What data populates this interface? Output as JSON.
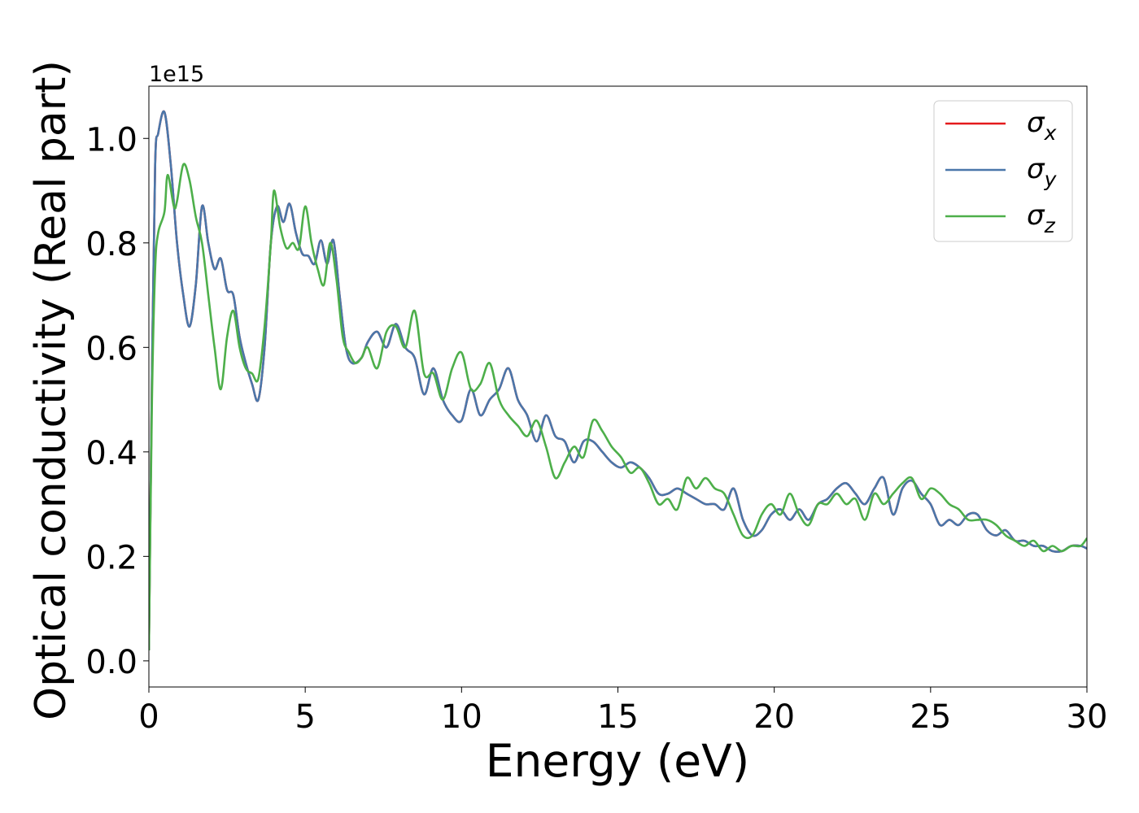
{
  "chart_data": {
    "type": "line",
    "title": "",
    "xlabel": "Energy (eV)",
    "ylabel": "Optical conductivity (Real part)",
    "y_offset_label": "1e15",
    "y_scale": 1000000000000000.0,
    "xlim": [
      0,
      30
    ],
    "ylim": [
      -0.05,
      1.1
    ],
    "xticks": [
      0,
      5,
      10,
      15,
      20,
      25,
      30
    ],
    "xtick_labels": [
      "0",
      "5",
      "10",
      "15",
      "20",
      "25",
      "30"
    ],
    "yticks": [
      0.0,
      0.2,
      0.4,
      0.6,
      0.8,
      1.0
    ],
    "ytick_labels": [
      "0.0",
      "0.2",
      "0.4",
      "0.6",
      "0.8",
      "1.0"
    ],
    "grid": false,
    "legend_position": "top-right",
    "series": [
      {
        "name": "σ_x",
        "legend_base": "σ",
        "legend_sub": "x",
        "color": "#e41a1c",
        "x": [
          0,
          0.1,
          0.2,
          0.3,
          0.5,
          0.7,
          0.9,
          1.1,
          1.3,
          1.5,
          1.7,
          1.9,
          2.1,
          2.3,
          2.5,
          2.7,
          2.9,
          3.1,
          3.3,
          3.5,
          3.7,
          3.9,
          4.1,
          4.3,
          4.5,
          4.7,
          4.9,
          5.1,
          5.3,
          5.5,
          5.7,
          5.9,
          6.1,
          6.3,
          6.5,
          6.8,
          7.0,
          7.3,
          7.6,
          7.9,
          8.2,
          8.5,
          8.8,
          9.1,
          9.4,
          9.7,
          10.0,
          10.3,
          10.6,
          10.9,
          11.2,
          11.5,
          11.8,
          12.1,
          12.4,
          12.7,
          13.0,
          13.3,
          13.6,
          13.9,
          14.2,
          14.5,
          14.8,
          15.1,
          15.4,
          15.7,
          16.0,
          16.3,
          16.6,
          16.9,
          17.2,
          17.5,
          17.8,
          18.1,
          18.4,
          18.7,
          19.0,
          19.3,
          19.6,
          19.9,
          20.2,
          20.5,
          20.8,
          21.1,
          21.4,
          21.7,
          22.0,
          22.3,
          22.6,
          22.9,
          23.2,
          23.5,
          23.8,
          24.1,
          24.4,
          24.7,
          25.0,
          25.3,
          25.6,
          25.9,
          26.2,
          26.5,
          26.8,
          27.1,
          27.4,
          27.7,
          28.0,
          28.3,
          28.6,
          28.9,
          29.2,
          29.5,
          29.8,
          30.0
        ],
        "values": [
          0.02,
          0.55,
          0.95,
          1.01,
          1.05,
          0.95,
          0.8,
          0.7,
          0.64,
          0.72,
          0.87,
          0.8,
          0.75,
          0.77,
          0.71,
          0.7,
          0.62,
          0.57,
          0.53,
          0.5,
          0.6,
          0.8,
          0.87,
          0.84,
          0.875,
          0.82,
          0.78,
          0.775,
          0.76,
          0.805,
          0.76,
          0.805,
          0.7,
          0.6,
          0.57,
          0.58,
          0.61,
          0.63,
          0.6,
          0.645,
          0.6,
          0.58,
          0.51,
          0.56,
          0.5,
          0.47,
          0.46,
          0.52,
          0.47,
          0.5,
          0.52,
          0.56,
          0.5,
          0.47,
          0.42,
          0.47,
          0.43,
          0.42,
          0.38,
          0.42,
          0.42,
          0.4,
          0.38,
          0.37,
          0.38,
          0.37,
          0.35,
          0.32,
          0.32,
          0.33,
          0.32,
          0.31,
          0.3,
          0.3,
          0.29,
          0.33,
          0.27,
          0.24,
          0.25,
          0.28,
          0.29,
          0.27,
          0.29,
          0.27,
          0.3,
          0.31,
          0.33,
          0.34,
          0.32,
          0.3,
          0.33,
          0.35,
          0.28,
          0.33,
          0.345,
          0.32,
          0.3,
          0.26,
          0.27,
          0.26,
          0.28,
          0.28,
          0.25,
          0.24,
          0.25,
          0.23,
          0.23,
          0.22,
          0.22,
          0.21,
          0.21,
          0.22,
          0.22,
          0.215
        ]
      },
      {
        "name": "σ_y",
        "legend_base": "σ",
        "legend_sub": "y",
        "color": "#4a77aa",
        "x": [
          0,
          0.1,
          0.2,
          0.3,
          0.5,
          0.7,
          0.9,
          1.1,
          1.3,
          1.5,
          1.7,
          1.9,
          2.1,
          2.3,
          2.5,
          2.7,
          2.9,
          3.1,
          3.3,
          3.5,
          3.7,
          3.9,
          4.1,
          4.3,
          4.5,
          4.7,
          4.9,
          5.1,
          5.3,
          5.5,
          5.7,
          5.9,
          6.1,
          6.3,
          6.5,
          6.8,
          7.0,
          7.3,
          7.6,
          7.9,
          8.2,
          8.5,
          8.8,
          9.1,
          9.4,
          9.7,
          10.0,
          10.3,
          10.6,
          10.9,
          11.2,
          11.5,
          11.8,
          12.1,
          12.4,
          12.7,
          13.0,
          13.3,
          13.6,
          13.9,
          14.2,
          14.5,
          14.8,
          15.1,
          15.4,
          15.7,
          16.0,
          16.3,
          16.6,
          16.9,
          17.2,
          17.5,
          17.8,
          18.1,
          18.4,
          18.7,
          19.0,
          19.3,
          19.6,
          19.9,
          20.2,
          20.5,
          20.8,
          21.1,
          21.4,
          21.7,
          22.0,
          22.3,
          22.6,
          22.9,
          23.2,
          23.5,
          23.8,
          24.1,
          24.4,
          24.7,
          25.0,
          25.3,
          25.6,
          25.9,
          26.2,
          26.5,
          26.8,
          27.1,
          27.4,
          27.7,
          28.0,
          28.3,
          28.6,
          28.9,
          29.2,
          29.5,
          29.8,
          30.0
        ],
        "values": [
          0.02,
          0.55,
          0.95,
          1.01,
          1.05,
          0.95,
          0.8,
          0.7,
          0.64,
          0.72,
          0.87,
          0.8,
          0.75,
          0.77,
          0.71,
          0.7,
          0.62,
          0.57,
          0.53,
          0.5,
          0.6,
          0.8,
          0.87,
          0.84,
          0.875,
          0.82,
          0.78,
          0.775,
          0.76,
          0.805,
          0.76,
          0.805,
          0.7,
          0.6,
          0.57,
          0.58,
          0.61,
          0.63,
          0.6,
          0.645,
          0.6,
          0.58,
          0.51,
          0.56,
          0.5,
          0.47,
          0.46,
          0.52,
          0.47,
          0.5,
          0.52,
          0.56,
          0.5,
          0.47,
          0.42,
          0.47,
          0.43,
          0.42,
          0.38,
          0.42,
          0.42,
          0.4,
          0.38,
          0.37,
          0.38,
          0.37,
          0.35,
          0.32,
          0.32,
          0.33,
          0.32,
          0.31,
          0.3,
          0.3,
          0.29,
          0.33,
          0.27,
          0.24,
          0.25,
          0.28,
          0.29,
          0.27,
          0.29,
          0.27,
          0.3,
          0.31,
          0.33,
          0.34,
          0.32,
          0.3,
          0.33,
          0.35,
          0.28,
          0.33,
          0.345,
          0.32,
          0.3,
          0.26,
          0.27,
          0.26,
          0.28,
          0.28,
          0.25,
          0.24,
          0.25,
          0.23,
          0.23,
          0.22,
          0.22,
          0.21,
          0.21,
          0.22,
          0.22,
          0.215
        ]
      },
      {
        "name": "σ_z",
        "legend_base": "σ",
        "legend_sub": "z",
        "color": "#4daf4a",
        "x": [
          0,
          0.1,
          0.2,
          0.3,
          0.5,
          0.6,
          0.8,
          0.9,
          1.1,
          1.3,
          1.5,
          1.7,
          1.9,
          2.1,
          2.3,
          2.5,
          2.7,
          2.9,
          3.1,
          3.3,
          3.5,
          3.7,
          3.9,
          4.0,
          4.2,
          4.4,
          4.6,
          4.8,
          5.0,
          5.2,
          5.4,
          5.6,
          5.8,
          6.0,
          6.2,
          6.4,
          6.6,
          6.8,
          7.0,
          7.3,
          7.6,
          7.9,
          8.2,
          8.5,
          8.8,
          9.1,
          9.4,
          9.7,
          10.0,
          10.3,
          10.6,
          10.9,
          11.2,
          11.5,
          11.8,
          12.1,
          12.4,
          12.7,
          13.0,
          13.3,
          13.6,
          13.9,
          14.2,
          14.5,
          14.8,
          15.1,
          15.4,
          15.7,
          16.0,
          16.3,
          16.6,
          16.9,
          17.2,
          17.5,
          17.8,
          18.1,
          18.4,
          18.7,
          19.0,
          19.3,
          19.6,
          19.9,
          20.2,
          20.5,
          20.8,
          21.1,
          21.4,
          21.7,
          22.0,
          22.3,
          22.6,
          22.9,
          23.2,
          23.5,
          23.8,
          24.1,
          24.4,
          24.7,
          25.0,
          25.3,
          25.6,
          25.9,
          26.2,
          26.5,
          26.8,
          27.1,
          27.4,
          27.7,
          28.0,
          28.3,
          28.6,
          28.9,
          29.2,
          29.5,
          29.8,
          30.0
        ],
        "values": [
          0.02,
          0.5,
          0.75,
          0.82,
          0.86,
          0.93,
          0.87,
          0.88,
          0.95,
          0.92,
          0.85,
          0.8,
          0.7,
          0.6,
          0.52,
          0.62,
          0.67,
          0.6,
          0.56,
          0.55,
          0.54,
          0.64,
          0.8,
          0.9,
          0.83,
          0.79,
          0.8,
          0.79,
          0.87,
          0.8,
          0.75,
          0.72,
          0.8,
          0.73,
          0.62,
          0.59,
          0.57,
          0.58,
          0.6,
          0.56,
          0.63,
          0.64,
          0.6,
          0.67,
          0.55,
          0.55,
          0.5,
          0.56,
          0.59,
          0.52,
          0.53,
          0.57,
          0.5,
          0.47,
          0.45,
          0.43,
          0.46,
          0.41,
          0.35,
          0.38,
          0.41,
          0.39,
          0.46,
          0.44,
          0.41,
          0.39,
          0.36,
          0.37,
          0.34,
          0.3,
          0.31,
          0.29,
          0.35,
          0.33,
          0.35,
          0.33,
          0.32,
          0.28,
          0.24,
          0.24,
          0.28,
          0.3,
          0.28,
          0.32,
          0.28,
          0.26,
          0.3,
          0.3,
          0.32,
          0.3,
          0.31,
          0.27,
          0.32,
          0.3,
          0.32,
          0.34,
          0.35,
          0.31,
          0.33,
          0.32,
          0.3,
          0.29,
          0.27,
          0.27,
          0.27,
          0.26,
          0.24,
          0.23,
          0.22,
          0.23,
          0.21,
          0.22,
          0.21,
          0.22,
          0.22,
          0.235
        ]
      }
    ]
  }
}
